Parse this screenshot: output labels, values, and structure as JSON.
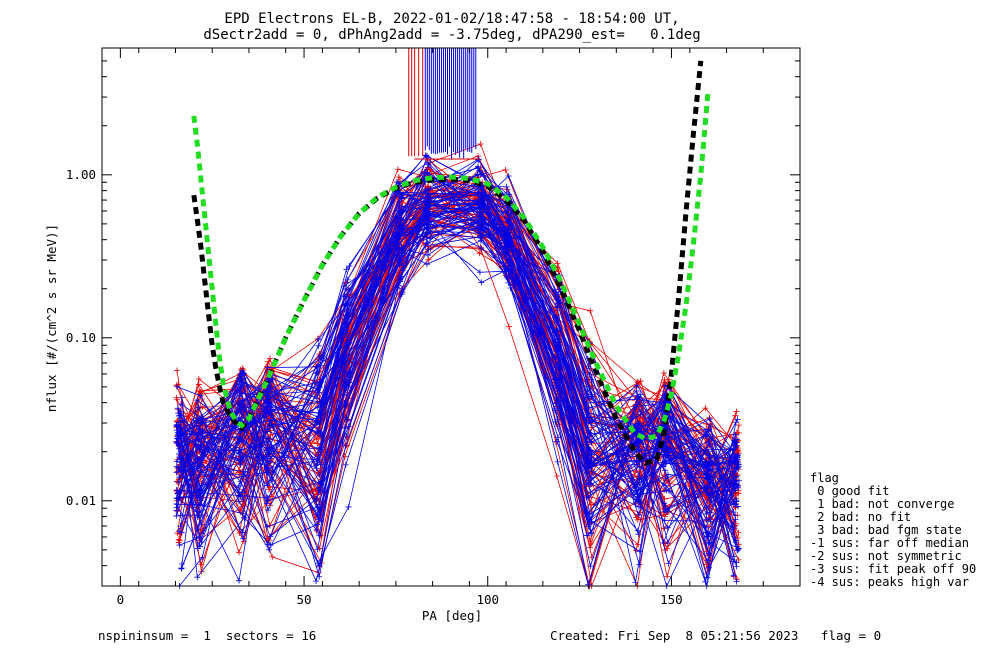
{
  "chart_data": {
    "type": "line",
    "title": "EPD Electrons EL-B, 2022-01-02/18:47:58 - 18:54:00 UT,",
    "subtitle": "dSectr2add = 0, dPhAng2add = -3.75deg, dPA290_est=   0.1deg",
    "xlabel": "PA [deg]",
    "ylabel": "nflux [#/(cm^2 s sr MeV)]",
    "xlim": [
      -5,
      185
    ],
    "ylim": [
      0.003,
      6.0
    ],
    "y_scale": "log",
    "x_ticks": [
      {
        "value": 0,
        "label": "0"
      },
      {
        "value": 50,
        "label": "50"
      },
      {
        "value": 100,
        "label": "100"
      },
      {
        "value": 150,
        "label": "150"
      }
    ],
    "y_ticks": [
      {
        "value": 0.01,
        "label": "0.01"
      },
      {
        "value": 0.1,
        "label": "0.10"
      },
      {
        "value": 1.0,
        "label": "1.00"
      }
    ],
    "colors": {
      "red": "#e60000",
      "blue": "#0000e6",
      "black": "#000000",
      "green": "#22dd22"
    },
    "series": [
      {
        "color": "#000000",
        "style": "dashed",
        "x": [
          20,
          21,
          22,
          23,
          24,
          25,
          26,
          27,
          28,
          30,
          32,
          33,
          35,
          40,
          45,
          50,
          55,
          60,
          65,
          70,
          75,
          80,
          85,
          90,
          95,
          100,
          105,
          110,
          115,
          120,
          125,
          130,
          135,
          140,
          143,
          146,
          148,
          150,
          152,
          154,
          156,
          158
        ],
        "y": [
          0.75,
          0.52,
          0.35,
          0.22,
          0.14,
          0.09,
          0.065,
          0.05,
          0.04,
          0.033,
          0.029,
          0.028,
          0.032,
          0.055,
          0.1,
          0.17,
          0.28,
          0.42,
          0.58,
          0.72,
          0.83,
          0.9,
          0.93,
          0.94,
          0.92,
          0.85,
          0.7,
          0.52,
          0.34,
          0.2,
          0.11,
          0.058,
          0.032,
          0.02,
          0.017,
          0.018,
          0.026,
          0.06,
          0.18,
          0.6,
          1.8,
          5.0
        ]
      },
      {
        "color": "#22dd22",
        "style": "dashed",
        "x": [
          20,
          21,
          22,
          23,
          24,
          25,
          26,
          27,
          28,
          30,
          32,
          33,
          35,
          40,
          45,
          50,
          55,
          60,
          65,
          70,
          75,
          80,
          85,
          90,
          95,
          100,
          105,
          110,
          115,
          120,
          125,
          130,
          135,
          140,
          143,
          146,
          148,
          150,
          152,
          154,
          156,
          158,
          160
        ],
        "y": [
          2.3,
          1.5,
          0.9,
          0.55,
          0.33,
          0.2,
          0.12,
          0.075,
          0.052,
          0.035,
          0.03,
          0.029,
          0.032,
          0.055,
          0.1,
          0.17,
          0.28,
          0.42,
          0.58,
          0.73,
          0.84,
          0.92,
          0.96,
          0.97,
          0.95,
          0.88,
          0.73,
          0.54,
          0.36,
          0.22,
          0.12,
          0.066,
          0.038,
          0.026,
          0.024,
          0.025,
          0.031,
          0.045,
          0.08,
          0.16,
          0.38,
          1.0,
          3.3
        ]
      }
    ],
    "legend": {
      "title": "flag",
      "entries": [
        " 0 good fit",
        " 1 bad: not converge",
        " 2 bad: no fit",
        " 3 bad: bad fgm state",
        "-1 sus: far off median",
        "-2 sus: not symmetric",
        "-3 sus: fit peak off 90",
        "-4 sus: peaks high var"
      ]
    },
    "grid": false
  },
  "footer": {
    "left": "nspininsum =  1  sectors = 16",
    "right": "Created: Fri Sep  8 05:21:56 2023   flag = 0"
  }
}
